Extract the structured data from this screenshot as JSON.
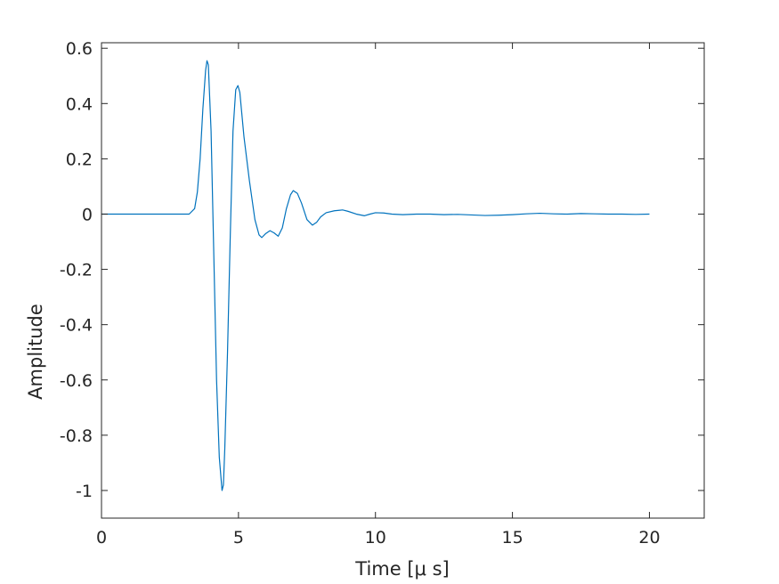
{
  "chart_data": {
    "type": "line",
    "title": "",
    "xlabel": "Time [μ s]",
    "ylabel": "Amplitude",
    "xlim": [
      0,
      22
    ],
    "ylim": [
      -1.1,
      0.62
    ],
    "xticks": [
      0,
      5,
      10,
      15,
      20
    ],
    "yticks": [
      0.6,
      0.4,
      0.2,
      0,
      -0.2,
      -0.4,
      -0.6,
      -0.8,
      -1
    ],
    "grid": false,
    "legend": "none",
    "series": [
      {
        "color": "#0072bd",
        "x": [
          0,
          1,
          2,
          3,
          3.2,
          3.4,
          3.5,
          3.6,
          3.7,
          3.8,
          3.85,
          3.9,
          4.0,
          4.1,
          4.2,
          4.3,
          4.4,
          4.45,
          4.5,
          4.6,
          4.7,
          4.8,
          4.9,
          4.98,
          5.05,
          5.2,
          5.4,
          5.6,
          5.75,
          5.85,
          6.0,
          6.15,
          6.3,
          6.45,
          6.6,
          6.75,
          6.9,
          7.0,
          7.15,
          7.3,
          7.5,
          7.7,
          7.85,
          8.0,
          8.2,
          8.5,
          8.8,
          9.0,
          9.3,
          9.6,
          9.8,
          10.0,
          10.3,
          10.6,
          11.0,
          11.5,
          12.0,
          12.5,
          13.0,
          13.5,
          14.0,
          14.5,
          15.0,
          15.5,
          16.0,
          16.5,
          17.0,
          17.5,
          18.0,
          18.5,
          19.0,
          19.5,
          20.0
        ],
        "y": [
          0,
          0,
          0,
          0,
          0.0,
          0.02,
          0.08,
          0.2,
          0.38,
          0.52,
          0.555,
          0.54,
          0.3,
          -0.15,
          -0.6,
          -0.88,
          -1.0,
          -0.98,
          -0.85,
          -0.5,
          -0.08,
          0.3,
          0.45,
          0.465,
          0.44,
          0.28,
          0.12,
          -0.02,
          -0.075,
          -0.085,
          -0.07,
          -0.06,
          -0.068,
          -0.08,
          -0.05,
          0.02,
          0.07,
          0.085,
          0.075,
          0.04,
          -0.02,
          -0.04,
          -0.03,
          -0.01,
          0.005,
          0.012,
          0.015,
          0.01,
          0.0,
          -0.006,
          0.0,
          0.005,
          0.004,
          0.0,
          -0.002,
          0.0,
          0.0,
          -0.002,
          -0.001,
          -0.003,
          -0.005,
          -0.004,
          -0.002,
          0.001,
          0.003,
          0.001,
          0.0,
          0.002,
          0.001,
          0.0,
          0.0,
          -0.001,
          0.0
        ]
      }
    ]
  }
}
